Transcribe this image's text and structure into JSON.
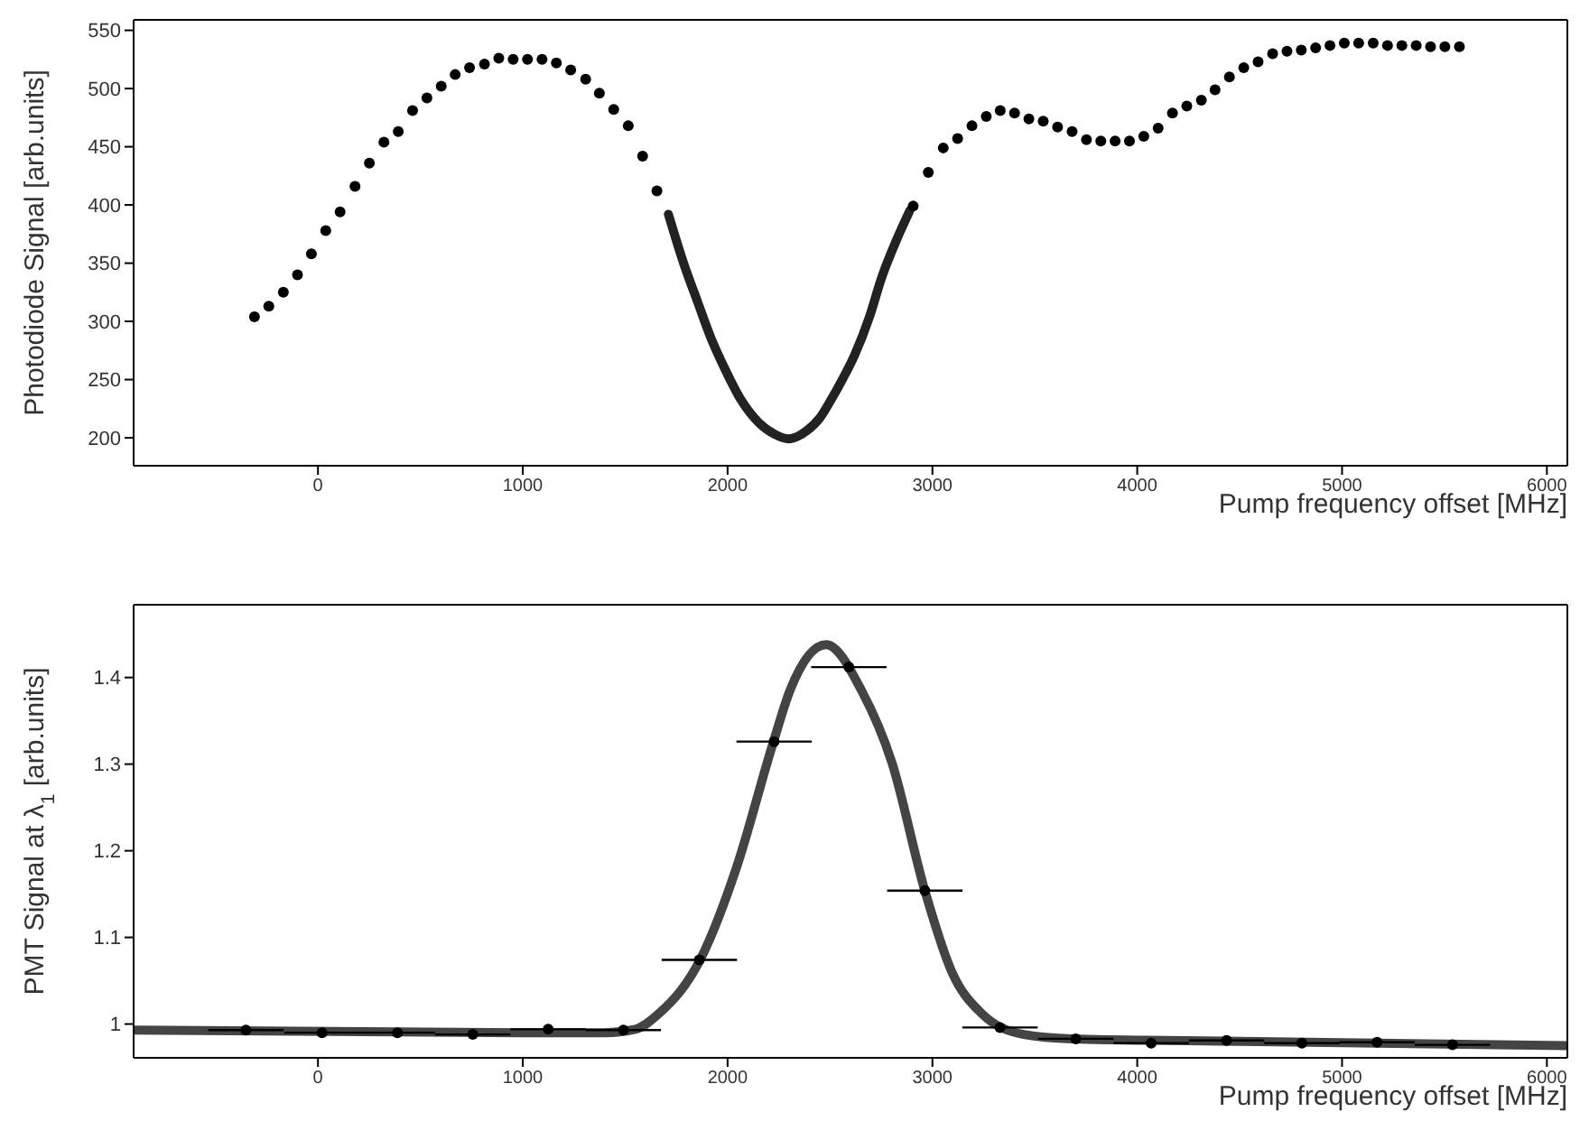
{
  "chart_data": [
    {
      "type": "scatter",
      "xlabel": "Pump frequency offset [MHz]",
      "ylabel": "Photodiode Signal [arb.units]",
      "xlim": [
        -900,
        6100
      ],
      "xticks": [
        0,
        1000,
        2000,
        3000,
        4000,
        5000,
        6000
      ],
      "ylim": [
        176,
        559
      ],
      "yticks": [
        200,
        250,
        300,
        350,
        400,
        450,
        500,
        550
      ],
      "series": [
        {
          "marker": "circle",
          "color": "#000000",
          "x": [
            -310,
            -240,
            -169,
            -100,
            -32,
            38,
            108,
            181,
            251,
            322,
            392,
            462,
            532,
            602,
            670,
            740,
            813,
            883,
            953,
            1023,
            1094,
            1164,
            1234,
            1307,
            1374,
            1444,
            1515,
            1585,
            1655,
            2906,
            2980,
            3053,
            3123,
            3193,
            3263,
            3331,
            3401,
            3471,
            3541,
            3611,
            3682,
            3752,
            3822,
            3892,
            3962,
            4032,
            4102,
            4172,
            4242,
            4313,
            4380,
            4450,
            4520,
            4590,
            4661,
            4731,
            4801,
            4871,
            4941,
            5011,
            5081,
            5152,
            5222,
            5292,
            5362,
            5432,
            5502,
            5573
          ],
          "values": [
            304,
            313,
            325,
            340,
            358,
            378,
            394,
            416,
            436,
            454,
            463,
            481,
            492,
            502,
            512,
            518,
            521,
            526,
            525,
            525,
            525,
            522,
            516,
            508,
            496,
            482,
            468,
            442,
            412,
            399,
            428,
            449,
            457,
            468,
            476,
            481,
            479,
            474,
            472,
            467,
            463,
            456,
            455,
            455,
            455,
            459,
            466,
            479,
            485,
            490,
            499,
            510,
            518,
            523,
            530,
            532,
            533,
            535,
            537,
            539,
            539,
            539,
            537,
            537,
            537,
            536,
            536,
            536
          ]
        },
        {
          "type": "line",
          "marker": "none",
          "color": "#222222",
          "x": [
            1711,
            1787,
            1853,
            1918,
            1990,
            2064,
            2152,
            2230,
            2298,
            2340,
            2386,
            2450,
            2503,
            2560,
            2620,
            2693,
            2751,
            2825,
            2889
          ],
          "values": [
            392,
            349,
            317,
            286,
            258,
            233,
            213,
            203,
            199,
            201,
            206,
            217,
            232,
            250,
            271,
            304,
            337,
            370,
            395
          ]
        }
      ]
    },
    {
      "type": "scatter",
      "xlabel": "Pump frequency offset [MHz]",
      "ylabel": "PMT Signal at λ$_{1}$ [arb.units]",
      "xlim": [
        -900,
        6100
      ],
      "xticks": [
        0,
        1000,
        2000,
        3000,
        4000,
        5000,
        6000
      ],
      "ylim": [
        0.961,
        1.484
      ],
      "yticks": [
        1,
        1.1,
        1.2,
        1.3,
        1.4
      ],
      "series": [
        {
          "marker": "circle",
          "color": "#000000",
          "x": [
            -352,
            20,
            388,
            756,
            1124,
            1491,
            1862,
            2227,
            2592,
            2963,
            3330,
            3700,
            4068,
            4436,
            4804,
            5171,
            5539
          ],
          "values": [
            0.993,
            0.99,
            0.99,
            0.988,
            0.994,
            0.993,
            1.074,
            1.326,
            1.412,
            1.154,
            0.996,
            0.983,
            0.978,
            0.981,
            0.978,
            0.979,
            0.976
          ],
          "xerrors": [
            184,
            184,
            184,
            184,
            184,
            184,
            184,
            184,
            184,
            184,
            184,
            184,
            184,
            184,
            184,
            184,
            184
          ]
        },
        {
          "type": "line",
          "marker": "none",
          "color": "#444444",
          "x": [
            -900,
            1000,
            1400,
            1550,
            1664,
            1868,
            2044,
            2219,
            2306,
            2481,
            2656,
            2802,
            2963,
            3095,
            3241,
            3446,
            3680,
            4500,
            6100
          ],
          "values": [
            0.993,
            0.99,
            0.99,
            0.994,
            1.012,
            1.075,
            1.181,
            1.322,
            1.386,
            1.438,
            1.384,
            1.302,
            1.154,
            1.06,
            1.012,
            0.988,
            0.983,
            0.98,
            0.975
          ]
        }
      ]
    }
  ]
}
